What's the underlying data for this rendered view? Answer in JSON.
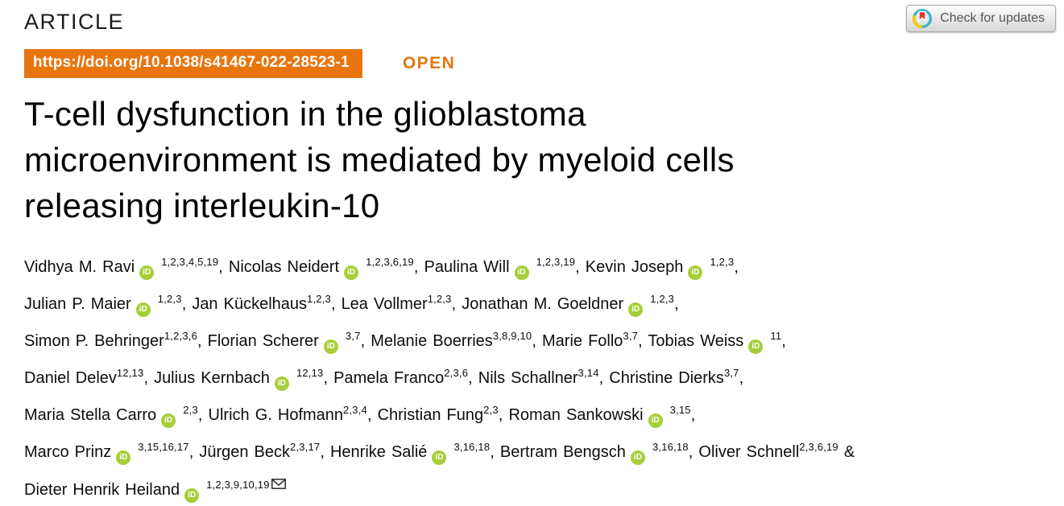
{
  "header": {
    "article_label": "ARTICLE",
    "check_updates_label": "Check for updates"
  },
  "doi": {
    "url": "https://doi.org/10.1038/s41467-022-28523-1",
    "open_label": "OPEN"
  },
  "title": {
    "lines": [
      "T-cell dysfunction in the glioblastoma",
      "microenvironment is mediated by myeloid cells",
      "releasing interleukin-10"
    ]
  },
  "icons": {
    "orcid_label": "iD",
    "crossmark_icon": "crossmark-icon",
    "email_icon": "email-icon"
  },
  "colors": {
    "accent_orange": "#e8750e",
    "orcid_green": "#a6ce39",
    "crossmark_teal": "#3db5c9",
    "crossmark_yellow": "#f6c700",
    "crossmark_red": "#e3353f"
  },
  "authors": {
    "lines": [
      [
        {
          "name": "Vidhya M. Ravi",
          "orcid": true,
          "sup": "1,2,3,4,5,19",
          "sep": ", "
        },
        {
          "name": "Nicolas Neidert",
          "orcid": true,
          "sup": "1,2,3,6,19",
          "sep": ", "
        },
        {
          "name": "Paulina Will",
          "orcid": true,
          "sup": "1,2,3,19",
          "sep": ", "
        },
        {
          "name": "Kevin Joseph",
          "orcid": true,
          "sup": "1,2,3",
          "sep": ","
        }
      ],
      [
        {
          "name": "Julian P. Maier",
          "orcid": true,
          "sup": "1,2,3",
          "sep": ", "
        },
        {
          "name": "Jan Kückelhaus",
          "orcid": false,
          "sup": "1,2,3",
          "sep": ", "
        },
        {
          "name": "Lea Vollmer",
          "orcid": false,
          "sup": "1,2,3",
          "sep": ", "
        },
        {
          "name": "Jonathan M. Goeldner",
          "orcid": true,
          "sup": "1,2,3",
          "sep": ","
        }
      ],
      [
        {
          "name": "Simon P. Behringer",
          "orcid": false,
          "sup": "1,2,3,6",
          "sep": ", "
        },
        {
          "name": "Florian Scherer",
          "orcid": true,
          "sup": "3,7",
          "sep": ", "
        },
        {
          "name": "Melanie Boerries",
          "orcid": false,
          "sup": "3,8,9,10",
          "sep": ", "
        },
        {
          "name": "Marie Follo",
          "orcid": false,
          "sup": "3,7",
          "sep": ", "
        },
        {
          "name": "Tobias Weiss",
          "orcid": true,
          "sup": "11",
          "sep": ","
        }
      ],
      [
        {
          "name": "Daniel Delev",
          "orcid": false,
          "sup": "12,13",
          "sep": ", "
        },
        {
          "name": "Julius Kernbach",
          "orcid": true,
          "sup": "12,13",
          "sep": ", "
        },
        {
          "name": "Pamela Franco",
          "orcid": false,
          "sup": "2,3,6",
          "sep": ", "
        },
        {
          "name": "Nils Schallner",
          "orcid": false,
          "sup": "3,14",
          "sep": ", "
        },
        {
          "name": "Christine Dierks",
          "orcid": false,
          "sup": "3,7",
          "sep": ","
        }
      ],
      [
        {
          "name": "Maria Stella Carro",
          "orcid": true,
          "sup": "2,3",
          "sep": ", "
        },
        {
          "name": "Ulrich G. Hofmann",
          "orcid": false,
          "sup": "2,3,4",
          "sep": ", "
        },
        {
          "name": "Christian Fung",
          "orcid": false,
          "sup": "2,3",
          "sep": ", "
        },
        {
          "name": "Roman Sankowski",
          "orcid": true,
          "sup": "3,15",
          "sep": ","
        }
      ],
      [
        {
          "name": "Marco Prinz",
          "orcid": true,
          "sup": "3,15,16,17",
          "sep": ", "
        },
        {
          "name": "Jürgen Beck",
          "orcid": false,
          "sup": "2,3,17",
          "sep": ", "
        },
        {
          "name": "Henrike Salié",
          "orcid": true,
          "sup": "3,16,18",
          "sep": ", "
        },
        {
          "name": "Bertram Bengsch",
          "orcid": true,
          "sup": "3,16,18",
          "sep": ", "
        },
        {
          "name": "Oliver Schnell",
          "orcid": false,
          "sup": "2,3,6,19",
          "sep": " &"
        }
      ],
      [
        {
          "name": "Dieter Henrik Heiland",
          "orcid": true,
          "sup": "1,2,3,9,10,19",
          "mail": true,
          "sep": ""
        }
      ]
    ]
  }
}
